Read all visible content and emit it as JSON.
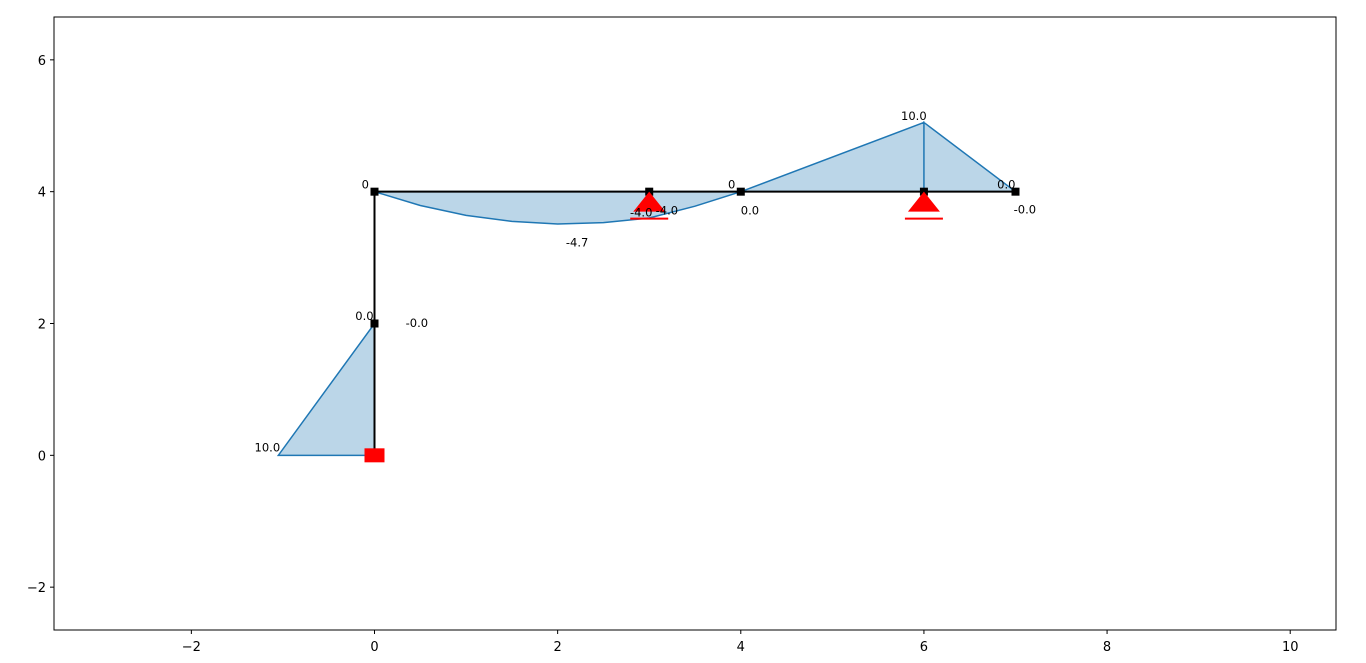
{
  "chart_data": {
    "type": "frame",
    "xlim": [
      -3.5,
      10.5
    ],
    "ylim": [
      -2.65,
      6.65
    ],
    "xticks": [
      {
        "value": -2,
        "label": "−2"
      },
      0,
      2,
      4,
      6,
      8,
      10
    ],
    "yticks": [
      {
        "value": -2,
        "label": "−2"
      },
      0,
      2,
      4,
      6
    ],
    "frame_color": "#000000",
    "diagram_color": "#1f77b4",
    "support_color": "#ff0000",
    "elements": [
      [
        0,
        0,
        0,
        4
      ],
      [
        0,
        4,
        7,
        4
      ]
    ],
    "nodes": {
      "x": [
        0,
        0,
        3,
        4,
        6,
        7
      ],
      "y": [
        2,
        4,
        4,
        4,
        4,
        4
      ]
    },
    "fixed_supports": [
      [
        0,
        0
      ]
    ],
    "hinged_supports": [
      [
        3,
        4
      ],
      [
        6,
        4
      ]
    ],
    "diagrams": [
      {
        "x": [
          0,
          -1.05,
          0
        ],
        "y": [
          0,
          0,
          2
        ]
      },
      {
        "x": [
          0,
          0.5,
          1,
          1.5,
          2,
          2.5,
          3,
          3.5,
          4,
          6,
          6,
          6,
          7
        ],
        "y": [
          4,
          3.79,
          3.64,
          3.55,
          3.51,
          3.53,
          3.6,
          3.78,
          4,
          5.05,
          4,
          5.05,
          4
        ]
      }
    ],
    "labels": [
      {
        "value": 10,
        "label": "10.0",
        "x": -1.31,
        "y": 0.06
      },
      {
        "value": 0,
        "label": "0",
        "x": -0.14,
        "y": 4.05
      },
      {
        "value": 0,
        "label": "0.0",
        "x": -0.21,
        "y": 2.05
      },
      {
        "value": 0,
        "label": "-0.0",
        "x": 0.34,
        "y": 1.95
      },
      {
        "value": -4.7,
        "label": "-4.7",
        "x": 2.09,
        "y": 3.17
      },
      {
        "value": -4,
        "label": "-4.0",
        "x": 2.79,
        "y": 3.62
      },
      {
        "value": -4,
        "label": "-4.0",
        "x": 3.07,
        "y": 3.65
      },
      {
        "value": 0,
        "label": "0",
        "x": 3.86,
        "y": 4.05
      },
      {
        "value": 0,
        "label": "0.0",
        "x": 4.0,
        "y": 3.65
      },
      {
        "value": 10,
        "label": "10.0",
        "x": 5.75,
        "y": 5.09
      },
      {
        "value": 0,
        "label": "0.0",
        "x": 6.8,
        "y": 4.05
      },
      {
        "value": 0,
        "label": "-0.0",
        "x": 6.98,
        "y": 3.67
      }
    ]
  }
}
